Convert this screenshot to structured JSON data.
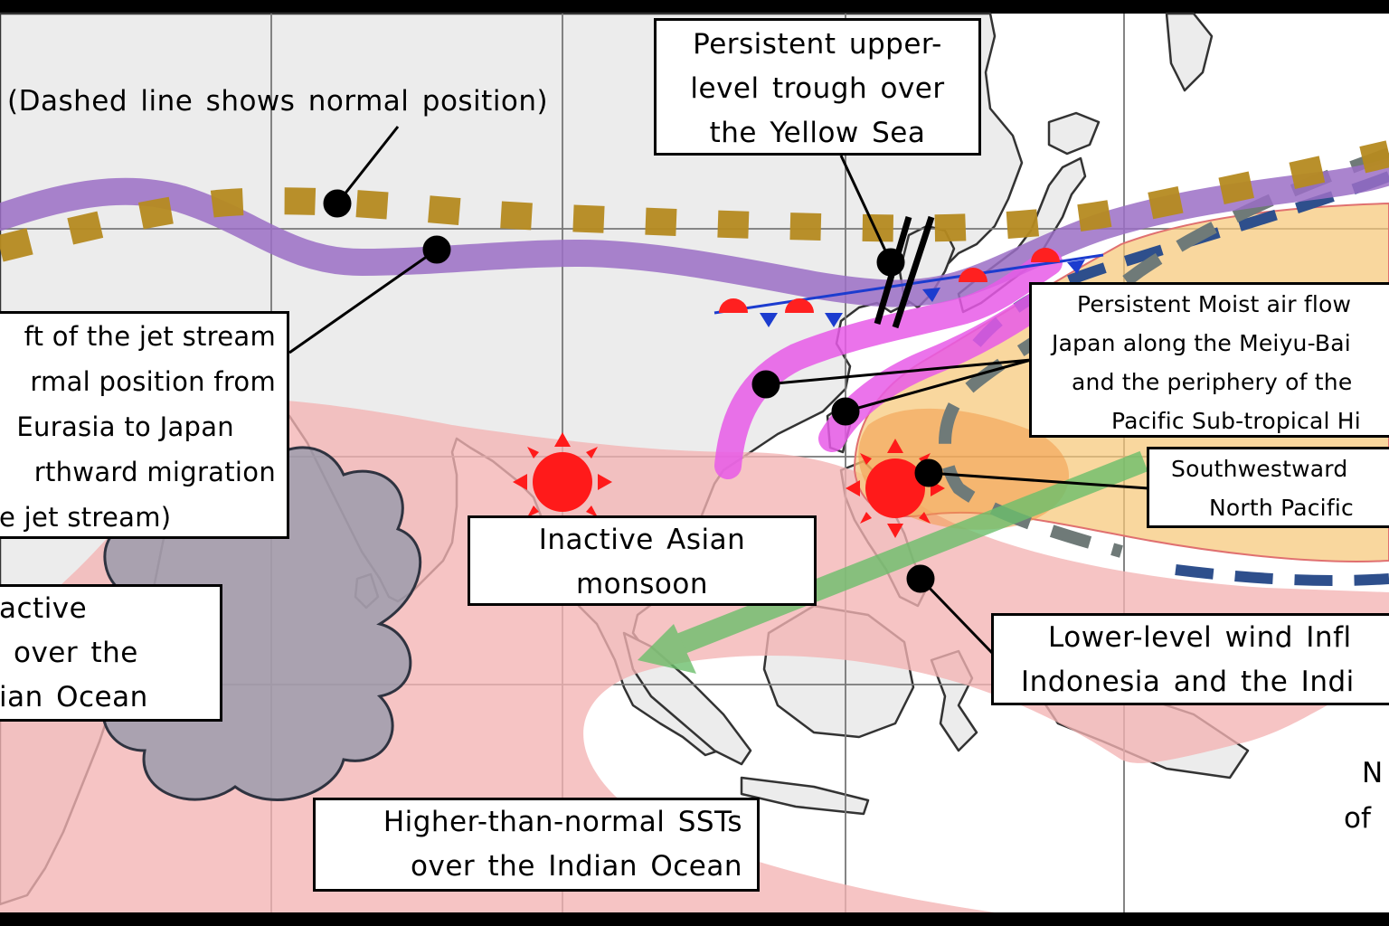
{
  "legend_note": "(Dashed line shows normal position)",
  "labels": {
    "upper_trough": [
      "Persistent upper-",
      "level trough over",
      "the Yellow Sea"
    ],
    "jet_shift": [
      "ft of the jet stream",
      "rmal position from",
      "Eurasia to Japan",
      "rthward migration",
      "e jet stream)"
    ],
    "moist_air": [
      "Persistent Moist air flow",
      "Japan along the Meiyu-Bai",
      "and the periphery of the",
      "Pacific Sub-tropical Hi"
    ],
    "southwestward": [
      "Southwestward",
      "North Pacific"
    ],
    "asian_monsoon": [
      "Inactive Asian",
      "monsoon"
    ],
    "inactive_convection": [
      "active",
      "over the",
      "ian Ocean"
    ],
    "lower_level_wind": [
      "Lower-level wind Infl",
      "Indonesia and the Indi"
    ],
    "sst": [
      "Higher-than-normal SSTs",
      "over the Indian Ocean"
    ],
    "edge_text": [
      "N",
      "of"
    ]
  },
  "features": {
    "jet_stream": {
      "color": "#9b6fc6",
      "style": "solid"
    },
    "jet_normal": {
      "color": "#b58a20",
      "style": "dashed"
    },
    "moist_flow": {
      "color": "#e85ae8"
    },
    "pacific_high": {
      "color": "#f6c878",
      "normal_edge_color": "#2e4f8c",
      "normal_edge_style": "dashed"
    },
    "warm_sst": {
      "color": "#f4b3b3"
    },
    "low_level_wind": {
      "color": "#6cbf6c"
    },
    "convection_cloud": {
      "color": "#8a94a8"
    },
    "front": {
      "warm_color": "#ff2020",
      "cold_color": "#1c3ccf"
    },
    "sun_icons": [
      "sun-icon-asia",
      "sun-icon-philippines"
    ]
  }
}
